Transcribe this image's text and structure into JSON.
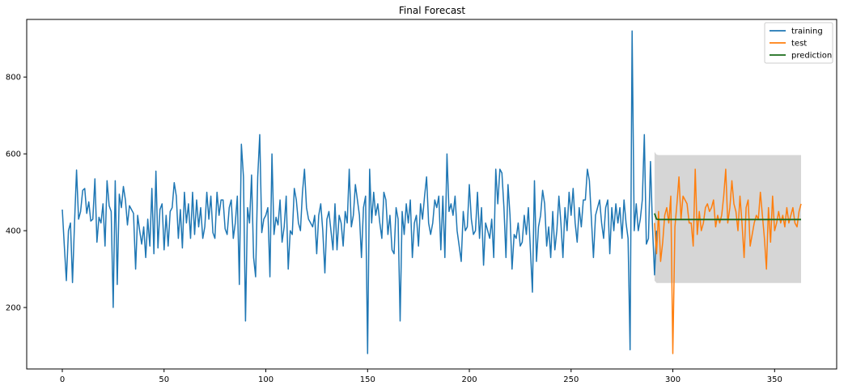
{
  "chart_data": {
    "type": "line",
    "title": "Final Forecast",
    "xlabel": "",
    "ylabel": "",
    "xlim": [
      -17.5,
      380.5
    ],
    "ylim": [
      40,
      950
    ],
    "x_ticks": [
      0,
      50,
      100,
      150,
      200,
      250,
      300,
      350
    ],
    "y_ticks": [
      200,
      400,
      600,
      800
    ],
    "grid": false,
    "legend_position": "top-right",
    "colors": {
      "training": "#1f77b4",
      "test": "#ff7f0e",
      "prediction": "#1a6b1a",
      "band": "#c8c8c8"
    },
    "series": [
      {
        "name": "training",
        "x_start": 0,
        "values": [
          455,
          360,
          270,
          400,
          420,
          265,
          420,
          558,
          430,
          450,
          505,
          510,
          445,
          475,
          425,
          430,
          535,
          370,
          435,
          420,
          470,
          360,
          530,
          465,
          450,
          200,
          530,
          260,
          495,
          460,
          515,
          480,
          415,
          465,
          455,
          445,
          300,
          440,
          400,
          365,
          410,
          330,
          430,
          360,
          510,
          340,
          555,
          355,
          455,
          470,
          350,
          440,
          360,
          450,
          460,
          525,
          490,
          380,
          455,
          355,
          500,
          420,
          470,
          380,
          500,
          390,
          480,
          410,
          460,
          380,
          410,
          500,
          430,
          490,
          395,
          380,
          500,
          440,
          480,
          480,
          405,
          390,
          460,
          480,
          380,
          420,
          490,
          260,
          625,
          540,
          165,
          460,
          420,
          545,
          330,
          280,
          540,
          650,
          395,
          430,
          440,
          460,
          280,
          600,
          390,
          435,
          415,
          480,
          370,
          410,
          490,
          300,
          400,
          390,
          510,
          480,
          420,
          400,
          500,
          560,
          460,
          430,
          420,
          410,
          440,
          340,
          440,
          470,
          400,
          290,
          430,
          450,
          400,
          350,
          470,
          350,
          440,
          420,
          360,
          450,
          420,
          560,
          410,
          440,
          520,
          480,
          440,
          330,
          460,
          490,
          80,
          560,
          420,
          500,
          440,
          470,
          420,
          380,
          500,
          480,
          390,
          440,
          350,
          340,
          460,
          430,
          165,
          450,
          390,
          470,
          420,
          480,
          330,
          420,
          440,
          360,
          470,
          430,
          490,
          540,
          420,
          390,
          420,
          480,
          460,
          490,
          350,
          490,
          330,
          600,
          450,
          470,
          440,
          490,
          400,
          360,
          320,
          450,
          400,
          410,
          520,
          430,
          390,
          400,
          500,
          380,
          460,
          310,
          420,
          400,
          380,
          430,
          330,
          560,
          470,
          560,
          550,
          460,
          330,
          520,
          440,
          300,
          390,
          380,
          420,
          360,
          370,
          440,
          390,
          460,
          350,
          240,
          530,
          320,
          410,
          440,
          505,
          470,
          360,
          410,
          330,
          450,
          350,
          400,
          490,
          420,
          330,
          460,
          400,
          500,
          440,
          510,
          420,
          370,
          460,
          410,
          480,
          480,
          560,
          530,
          430,
          330,
          440,
          460,
          480,
          420,
          380,
          460,
          480,
          340,
          460,
          400,
          470,
          420,
          460,
          380,
          480,
          420,
          380,
          90,
          920,
          400,
          470,
          400,
          430,
          480,
          650,
          365,
          380,
          580,
          410,
          285,
          400
        ]
      },
      {
        "name": "test",
        "x_start": 291,
        "values": [
          420,
          340,
          450,
          320,
          370,
          440,
          460,
          420,
          490,
          80,
          410,
          470,
          540,
          430,
          490,
          480,
          470,
          420,
          420,
          360,
          560,
          390,
          450,
          400,
          420,
          460,
          470,
          450,
          460,
          480,
          410,
          440,
          420,
          440,
          490,
          560,
          420,
          460,
          530,
          470,
          450,
          400,
          490,
          420,
          330,
          460,
          480,
          360,
          390,
          420,
          440,
          430,
          500,
          440,
          380,
          300,
          460,
          370,
          490,
          400,
          420,
          450,
          420,
          440,
          410,
          460,
          420,
          440,
          460,
          420,
          410,
          450,
          470
        ]
      },
      {
        "name": "prediction",
        "x_start": 291,
        "values": [
          445,
          430,
          429,
          429,
          429,
          429,
          429,
          429,
          429,
          429,
          429,
          429,
          429,
          429,
          429,
          429,
          429,
          429,
          429,
          429,
          429,
          429,
          429,
          429,
          429,
          429,
          429,
          429,
          429,
          429,
          429,
          429,
          429,
          429,
          429,
          429,
          429,
          429,
          429,
          429,
          429,
          429,
          429,
          429,
          429,
          429,
          429,
          429,
          429,
          429,
          429,
          429,
          429,
          429,
          429,
          429,
          429,
          429,
          429,
          429,
          429,
          429,
          429,
          429,
          429,
          429,
          429,
          429,
          429,
          429,
          429,
          429,
          429
        ]
      }
    ],
    "confidence_band": {
      "x": [
        291,
        292,
        293,
        363
      ],
      "upper": [
        605,
        598,
        597,
        597
      ],
      "lower": [
        270,
        264,
        264,
        264
      ]
    }
  }
}
